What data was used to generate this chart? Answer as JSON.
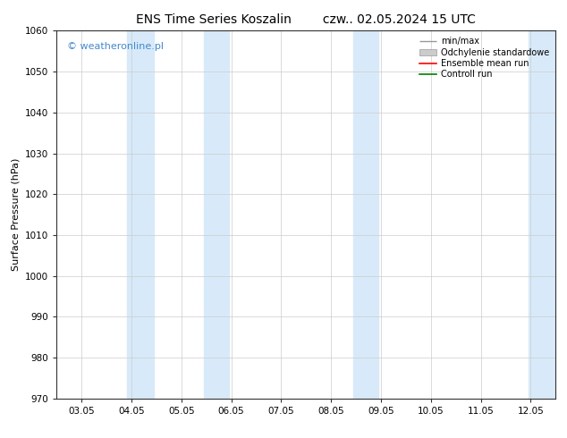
{
  "title_left": "ENS Time Series Koszalin",
  "title_right": "czw.. 02.05.2024 15 UTC",
  "ylabel": "Surface Pressure (hPa)",
  "ylim": [
    970,
    1060
  ],
  "yticks": [
    970,
    980,
    990,
    1000,
    1010,
    1020,
    1030,
    1040,
    1050,
    1060
  ],
  "xtick_labels": [
    "03.05",
    "04.05",
    "05.05",
    "06.05",
    "07.05",
    "08.05",
    "09.05",
    "10.05",
    "11.05",
    "12.05"
  ],
  "background_color": "#ffffff",
  "plot_bg_color": "#ffffff",
  "shaded_color": "#d8eaf9",
  "watermark_text": "© weatheronline.pl",
  "watermark_color": "#4488cc",
  "title_fontsize": 10,
  "axis_label_fontsize": 8,
  "tick_fontsize": 7.5,
  "watermark_fontsize": 8,
  "legend_fontsize": 7
}
